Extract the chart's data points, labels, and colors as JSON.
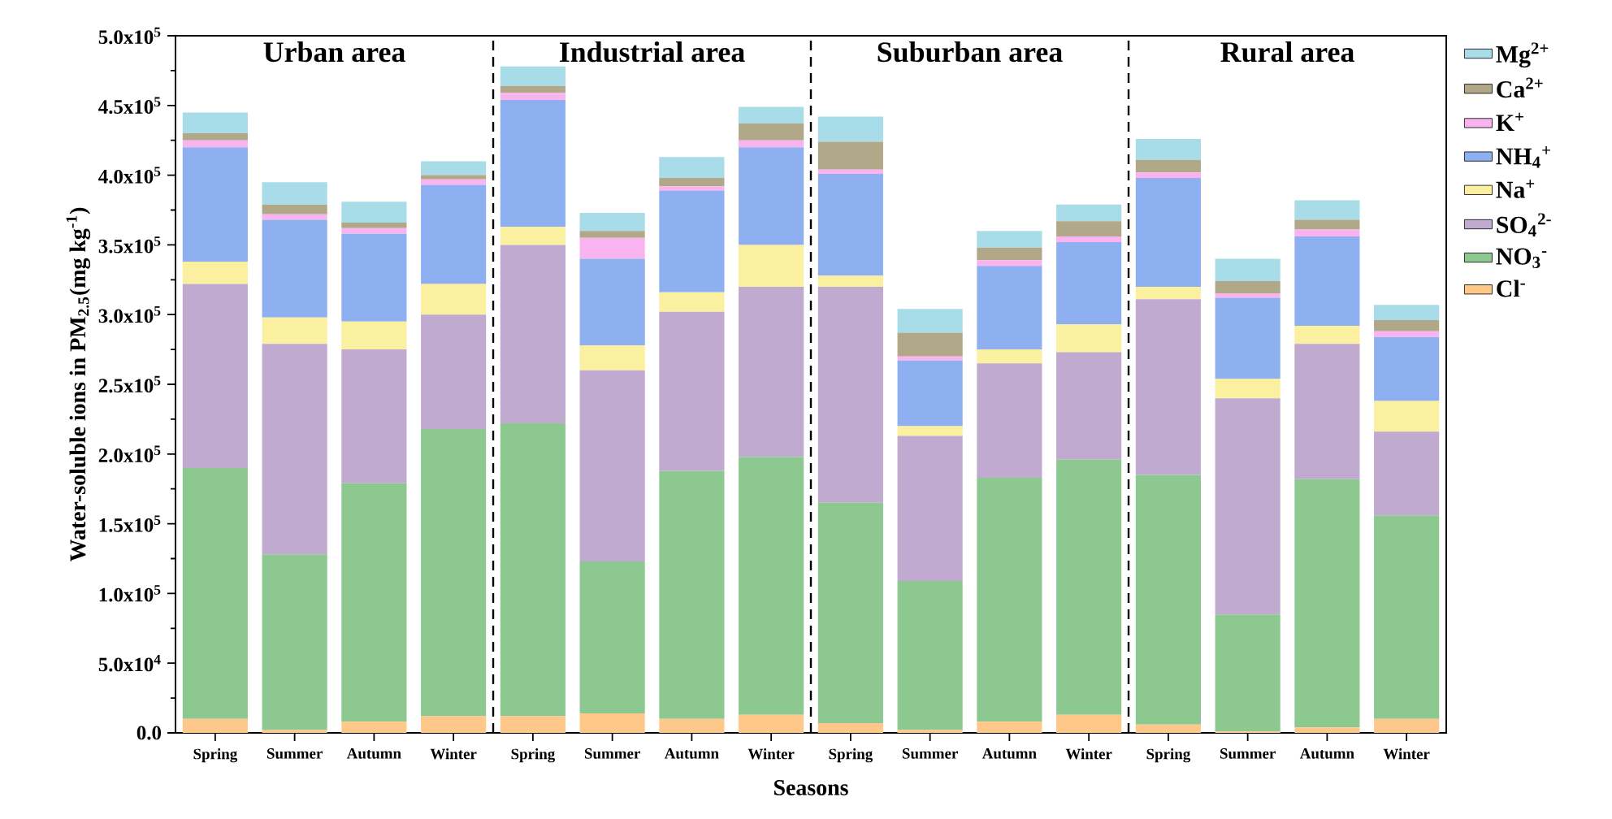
{
  "chart_data": {
    "type": "bar",
    "stacked": true,
    "categories": [
      "Spring",
      "Summer",
      "Autumn",
      "Winter",
      "Spring",
      "Summer",
      "Autumn",
      "Winter",
      "Spring",
      "Summer",
      "Autumn",
      "Winter",
      "Spring",
      "Summer",
      "Autumn",
      "Winter"
    ],
    "xlabel": "Seasons",
    "ylabel": "Water-soluble ions in PM$_{2.5}$(mg kg$^{-1}$)",
    "annotations": [
      "Urban area",
      "Industrial area",
      "Suburban area",
      "Rural area"
    ],
    "ylim": [
      0,
      500000
    ],
    "yticks": [
      {
        "value": 0,
        "label": "0.0"
      },
      {
        "value": 50000,
        "label": "5.0x10$^{4}$"
      },
      {
        "value": 100000,
        "label": "1.0x10$^{5}$"
      },
      {
        "value": 150000,
        "label": "1.5x10$^{5}$"
      },
      {
        "value": 200000,
        "label": "2.0x10$^{5}$"
      },
      {
        "value": 250000,
        "label": "2.5x10$^{5}$"
      },
      {
        "value": 300000,
        "label": "3.0x10$^{5}$"
      },
      {
        "value": 350000,
        "label": "3.5x10$^{5}$"
      },
      {
        "value": 400000,
        "label": "4.0x10$^{5}$"
      },
      {
        "value": 450000,
        "label": "4.5x10$^{5}$"
      },
      {
        "value": 500000,
        "label": "5.0x10$^{5}$"
      }
    ],
    "legend": "right",
    "series": [
      {
        "name": "Cl$^{-}$",
        "color": "#fdc88a",
        "values": [
          10000,
          2000,
          8000,
          12000,
          12000,
          14000,
          10000,
          13000,
          7000,
          2000,
          8000,
          13000,
          6000,
          1000,
          4000,
          10000
        ]
      },
      {
        "name": "NO$_{3}$$^{-}$",
        "color": "#8cc890",
        "values": [
          180000,
          126000,
          171000,
          206000,
          210000,
          109000,
          178000,
          185000,
          158000,
          107000,
          175000,
          183000,
          179000,
          84000,
          178000,
          146000
        ]
      },
      {
        "name": "SO$_{4}$$^{2-}$",
        "color": "#c0aad0",
        "values": [
          132000,
          151000,
          96000,
          82000,
          128000,
          137000,
          114000,
          122000,
          155000,
          104000,
          82000,
          77000,
          126000,
          155000,
          97000,
          60000
        ]
      },
      {
        "name": "Na$^{+}$",
        "color": "#fbf0a0",
        "values": [
          16000,
          19000,
          20000,
          22000,
          13000,
          18000,
          14000,
          30000,
          8000,
          7000,
          10000,
          20000,
          9000,
          14000,
          13000,
          22000
        ]
      },
      {
        "name": "NH$_{4}$$^{+}$",
        "color": "#8fb0f0",
        "values": [
          82000,
          70000,
          63000,
          71000,
          91000,
          62000,
          73000,
          70000,
          73000,
          47000,
          60000,
          59000,
          78000,
          58000,
          64000,
          46000
        ]
      },
      {
        "name": "K$^{+}$",
        "color": "#f9b3ef",
        "values": [
          5000,
          4000,
          4000,
          4000,
          5000,
          15000,
          3000,
          5000,
          3000,
          3000,
          4000,
          4000,
          4000,
          3000,
          5000,
          4000
        ]
      },
      {
        "name": "Ca$^{2+}$",
        "color": "#b0a888",
        "values": [
          5000,
          7000,
          4000,
          3000,
          5000,
          5000,
          6000,
          12000,
          20000,
          17000,
          9000,
          11000,
          9000,
          9000,
          7000,
          8000
        ]
      },
      {
        "name": "Mg$^{2+}$",
        "color": "#a8dce8",
        "values": [
          15000,
          16000,
          15000,
          10000,
          14000,
          13000,
          15000,
          12000,
          18000,
          17000,
          12000,
          12000,
          15000,
          16000,
          14000,
          11000
        ]
      }
    ]
  }
}
